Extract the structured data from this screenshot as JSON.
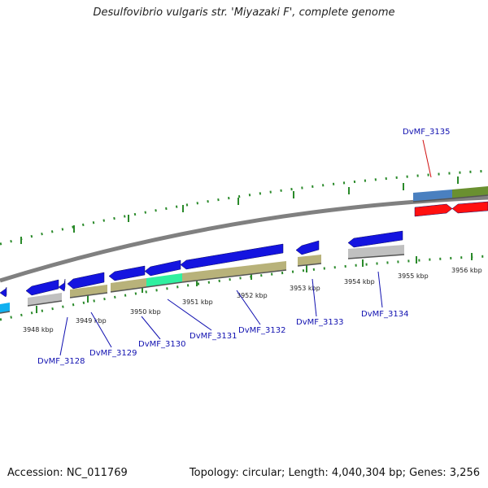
{
  "title": "Desulfovibrio vulgaris str. 'Miyazaki F', complete genome",
  "footer": {
    "accession": "Accession: NC_011769",
    "summary": "Topology: circular; Length: 4,040,304 bp; Genes: 3,256"
  },
  "colors": {
    "backbone": "#808080",
    "tick": "#2a8a2a",
    "label_blue": "#1010b0",
    "label_red": "#d01010",
    "cds_blue": "#1414e0",
    "rna_red": "#ff1010",
    "olive": "#b8b27a",
    "grey": "#c0c0c0",
    "green_special": "#30f0a0",
    "cyan": "#10b0f0",
    "steelblue": "#4a80c0",
    "darkolive": "#6a9030"
  },
  "ticks": [
    {
      "label": "3948 kbp"
    },
    {
      "label": "3949 kbp"
    },
    {
      "label": "3950 kbp"
    },
    {
      "label": "3951 kbp"
    },
    {
      "label": "3952 kbp"
    },
    {
      "label": "3953 kbp"
    },
    {
      "label": "3954 kbp"
    },
    {
      "label": "3955 kbp"
    },
    {
      "label": "3956 kbp"
    }
  ],
  "genes": [
    {
      "name": "DvMF_3128",
      "highlight": false
    },
    {
      "name": "DvMF_3129",
      "highlight": false
    },
    {
      "name": "DvMF_3130",
      "highlight": false
    },
    {
      "name": "DvMF_3131",
      "highlight": false
    },
    {
      "name": "DvMF_3132",
      "highlight": false
    },
    {
      "name": "DvMF_3133",
      "highlight": false
    },
    {
      "name": "DvMF_3134",
      "highlight": false
    },
    {
      "name": "DvMF_3135",
      "highlight": true
    }
  ]
}
